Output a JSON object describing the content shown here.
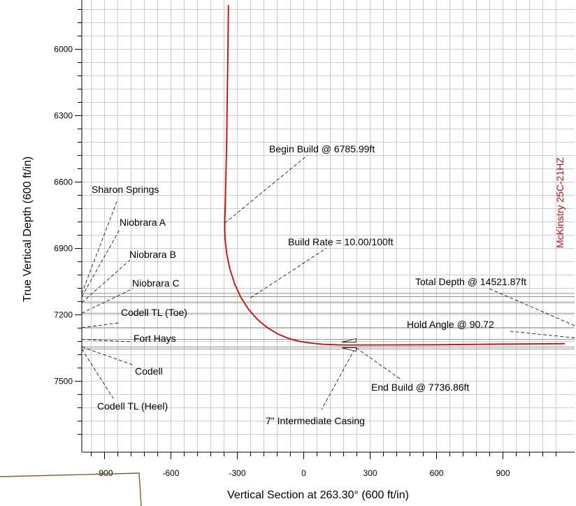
{
  "chart_data": {
    "type": "line",
    "title": "",
    "xlabel": "Vertical Section at 263.30° (600 ft/in)",
    "ylabel": "True Vertical Depth (600 ft/in)",
    "xlim": [
      -1020,
      1180
    ],
    "ylim": [
      7760,
      5800
    ],
    "y_inverted": true,
    "grid": true,
    "x_ticks": [
      -900,
      -600,
      -300,
      0,
      300,
      600,
      900
    ],
    "y_ticks": [
      6000,
      6300,
      6600,
      6900,
      7200,
      7500
    ],
    "series": [
      {
        "name": "McKinstry 25C-21HZ",
        "color": "#e00000",
        "x": [
          -340,
          -344,
          -348,
          -352,
          -355,
          -357,
          -356,
          -348,
          -333,
          -311,
          -283,
          -249,
          -210,
          -167,
          -120,
          -70,
          -18,
          35,
          88,
          140,
          180,
          230,
          600,
          900,
          1180
        ],
        "y": [
          5800,
          6100,
          6400,
          6600,
          6720,
          6786,
          6850,
          6925,
          6996,
          7063,
          7123,
          7175,
          7220,
          7256,
          7285,
          7306,
          7320,
          7328,
          7333,
          7335,
          7336,
          7336,
          7335,
          7332,
          7330
        ]
      }
    ],
    "well_label": "McKinstry 25C-21HZ",
    "formations": [
      {
        "name": "Sharon Springs",
        "tvd": 7103
      },
      {
        "name": "Niobrara A",
        "tvd": 7118
      },
      {
        "name": "Niobrara B",
        "tvd": 7145
      },
      {
        "name": "Niobrara C",
        "tvd": 7193
      },
      {
        "name": "Codell TL (Toe)",
        "tvd": 7258
      },
      {
        "name": "Fort Hays",
        "tvd": 7311
      },
      {
        "name": "Codell",
        "tvd": 7345
      },
      {
        "name": "Codell TL (Heel)",
        "tvd": 7354
      }
    ],
    "annotations": [
      {
        "text": "Begin Build @ 6785.99ft",
        "x": -357,
        "y": 6786
      },
      {
        "text": "Build Rate = 10.00/100ft",
        "x": -240,
        "y": 7123
      },
      {
        "text": "End Build @ 7736.86ft",
        "x": 230,
        "y": 7336
      },
      {
        "text": "7\" Intermediate Casing",
        "x": 230,
        "y": 7336
      },
      {
        "text": "Hold Angle @ 90.72",
        "x": 1180,
        "y": 7310
      },
      {
        "text": "Total Depth @ 14521.87ft",
        "x": 1180,
        "y": 7280
      }
    ]
  }
}
